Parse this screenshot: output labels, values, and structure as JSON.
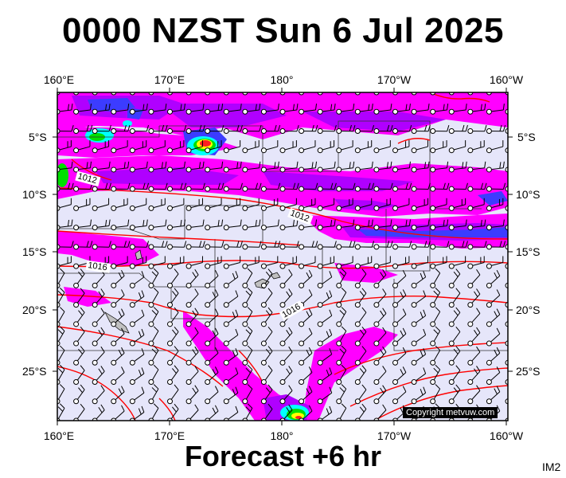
{
  "title": "0000 NZST Sun 6 Jul 2025",
  "footer": "Forecast +6 hr",
  "corner_code": "IM2",
  "copyright": "Copyright metvuw.com",
  "longitude_labels": [
    "160°E",
    "170°E",
    "180°",
    "170°W",
    "160°W"
  ],
  "latitude_labels": [
    "5°S",
    "10°S",
    "15°S",
    "20°S",
    "25°S"
  ],
  "isobar_labels": [
    "1012",
    "1012",
    "1016",
    "1016"
  ],
  "colors": {
    "background_field": "#e6e6fa",
    "precip_magenta": "#ff00ff",
    "precip_violet": "#b000ff",
    "precip_blue": "#3c3cff",
    "precip_cyan": "#00ffff",
    "precip_green": "#00e000",
    "precip_yellow": "#ffff00",
    "precip_red": "#ff2020",
    "isobar": "#ff0000",
    "land": "#c0c0c0"
  }
}
